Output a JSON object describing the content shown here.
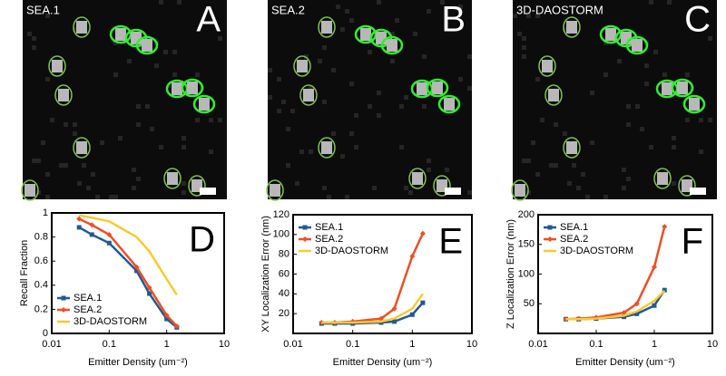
{
  "images": [
    {
      "label": "SEA.1",
      "letter": "A"
    },
    {
      "label": "SEA.2",
      "letter": "B"
    },
    {
      "label": "3D-DAOSTORM",
      "letter": "C"
    }
  ],
  "chart_data": [
    {
      "type": "line",
      "letter": "D",
      "x_label": "Emitter Density (um⁻²)",
      "y_label": "Recall Fraction",
      "x": [
        0.03,
        0.05,
        0.1,
        0.3,
        0.5,
        1,
        1.5
      ],
      "x_log": true,
      "xlim": [
        0.01,
        10
      ],
      "xticks": [
        0.01,
        0.1,
        1,
        10
      ],
      "ylim": [
        0,
        1
      ],
      "yticks": [
        0,
        0.2,
        0.4,
        0.6,
        0.8,
        1
      ],
      "legend": "lower-left",
      "series": [
        {
          "name": "SEA.1",
          "color": "#1f5a96",
          "marker": "square",
          "values": [
            0.88,
            0.82,
            0.75,
            0.52,
            0.33,
            0.12,
            0.05
          ]
        },
        {
          "name": "SEA.2",
          "color": "#f04e23",
          "marker": "diamond",
          "values": [
            0.95,
            0.9,
            0.82,
            0.55,
            0.38,
            0.15,
            0.06
          ]
        },
        {
          "name": "3D-DAOSTORM",
          "color": "#fdc82f",
          "values": [
            0.98,
            0.96,
            0.93,
            0.8,
            0.68,
            0.45,
            0.32
          ]
        }
      ]
    },
    {
      "type": "line",
      "letter": "E",
      "x_label": "Emitter Density (um⁻²)",
      "y_label": "XY Localization Error (nm)",
      "x": [
        0.03,
        0.05,
        0.1,
        0.3,
        0.5,
        1,
        1.5
      ],
      "x_log": true,
      "xlim": [
        0.01,
        10
      ],
      "xticks": [
        0.01,
        0.1,
        1,
        10
      ],
      "ylim": [
        0,
        120
      ],
      "yticks": [
        20,
        40,
        60,
        80,
        100,
        120
      ],
      "legend": "upper-left",
      "series": [
        {
          "name": "SEA.1",
          "color": "#1f5a96",
          "marker": "square",
          "values": [
            10,
            10,
            10,
            11,
            12,
            19,
            31
          ]
        },
        {
          "name": "SEA.2",
          "color": "#f04e23",
          "marker": "diamond",
          "values": [
            11,
            11,
            12,
            15,
            25,
            78,
            101
          ]
        },
        {
          "name": "3D-DAOSTORM",
          "color": "#fdc82f",
          "values": [
            11,
            11,
            11,
            12,
            15,
            25,
            40
          ]
        }
      ]
    },
    {
      "type": "line",
      "letter": "F",
      "x_label": "Emitter Density (um⁻²)",
      "y_label": "Z Localization Error (nm)",
      "x": [
        0.03,
        0.05,
        0.1,
        0.3,
        0.5,
        1,
        1.5
      ],
      "x_log": true,
      "xlim": [
        0.01,
        10
      ],
      "xticks": [
        0.01,
        0.1,
        1,
        10
      ],
      "ylim": [
        0,
        200
      ],
      "yticks": [
        50,
        100,
        150,
        200
      ],
      "legend": "upper-left",
      "series": [
        {
          "name": "SEA.1",
          "color": "#1f5a96",
          "marker": "square",
          "values": [
            24,
            24,
            25,
            28,
            33,
            47,
            73
          ]
        },
        {
          "name": "SEA.2",
          "color": "#f04e23",
          "marker": "diamond",
          "values": [
            24,
            25,
            27,
            35,
            50,
            112,
            180
          ]
        },
        {
          "name": "3D-DAOSTORM",
          "color": "#fdc82f",
          "values": [
            24,
            24,
            25,
            30,
            37,
            55,
            72
          ]
        }
      ]
    }
  ]
}
